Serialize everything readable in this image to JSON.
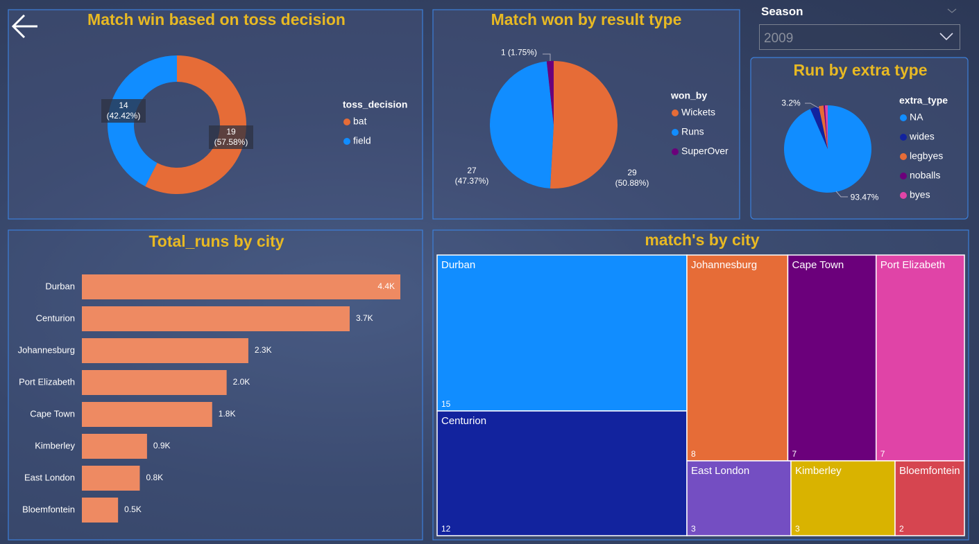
{
  "slicer": {
    "label": "Season",
    "value": "2009"
  },
  "chart_data": [
    {
      "type": "donut",
      "title": "Match win based on toss decision",
      "legend_title": "toss_decision",
      "categories": [
        "bat",
        "field"
      ],
      "values": [
        19,
        14
      ],
      "value_labels": [
        "19 (57.58%)",
        "14 (42.42%)"
      ],
      "colors": [
        "#e66c37",
        "#118dff"
      ]
    },
    {
      "type": "pie",
      "title": "Match won by result type",
      "legend_title": "won_by",
      "categories": [
        "Wickets",
        "Runs",
        "SuperOver"
      ],
      "values": [
        29,
        27,
        1
      ],
      "value_labels": [
        "29 (50.88%)",
        "27 (47.37%)",
        "1 (1.75%)"
      ],
      "colors": [
        "#e66c37",
        "#118dff",
        "#6b007b"
      ]
    },
    {
      "type": "pie",
      "title": "Run by extra type",
      "legend_title": "extra_type",
      "categories": [
        "NA",
        "wides",
        "legbyes",
        "noballs",
        "byes"
      ],
      "values": [
        93.47,
        3.2,
        1.8,
        0.5,
        1.03
      ],
      "value_labels": [
        "93.47%",
        "3.2%",
        null,
        null,
        null
      ],
      "colors": [
        "#118dff",
        "#12239e",
        "#e66c37",
        "#6b007b",
        "#e044a7"
      ]
    },
    {
      "type": "hbar",
      "title": "Total_runs by city",
      "categories": [
        "Durban",
        "Centurion",
        "Johannesburg",
        "Port Elizabeth",
        "Cape Town",
        "Kimberley",
        "East London",
        "Bloemfontein"
      ],
      "values": [
        4400,
        3700,
        2300,
        2000,
        1800,
        900,
        800,
        500
      ],
      "value_labels": [
        "4.4K",
        "3.7K",
        "2.3K",
        "2.0K",
        "1.8K",
        "0.9K",
        "0.8K",
        "0.5K"
      ],
      "color": "#ee8a62"
    },
    {
      "type": "treemap",
      "title": "match's by city",
      "categories": [
        "Durban",
        "Centurion",
        "Johannesburg",
        "Cape Town",
        "Port Elizabeth",
        "East London",
        "Kimberley",
        "Bloemfontein"
      ],
      "values": [
        15,
        12,
        8,
        7,
        7,
        3,
        3,
        2
      ],
      "colors": [
        "#118dff",
        "#12239e",
        "#e66c37",
        "#6b007b",
        "#e044a7",
        "#744ec2",
        "#d9b300",
        "#d64550"
      ]
    }
  ]
}
